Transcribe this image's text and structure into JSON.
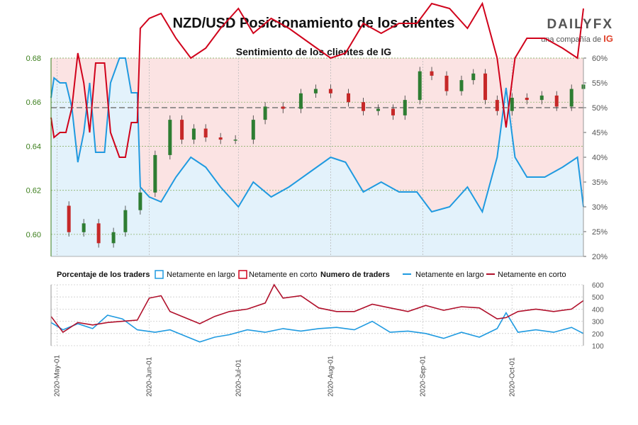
{
  "title": "NZD/USD Posicionamiento de los clientes",
  "subtitle": "Sentimiento de los clientes de IG",
  "logo": {
    "word": "DAILYFX",
    "tagline": "una compañía de",
    "brand": "IG"
  },
  "legend": {
    "percent_title": "Porcentaje de los traders",
    "count_title": "Numero de traders",
    "long_label": "Netamente en largo",
    "short_label": "Netamente en corto"
  },
  "colors": {
    "long": "#1f9ae0",
    "short": "#d0021b",
    "short_dark": "#b0102b",
    "up": "#2e7d32",
    "down": "#c62828",
    "bg_short": "#fbe3e3",
    "bg_long": "#e3f2fb"
  },
  "chart_data": [
    {
      "type": "candlestick",
      "title": "Sentimiento de los clientes de IG",
      "ylim": [
        0.59,
        0.68
      ],
      "yticks": [
        "0.60",
        "0.62",
        "0.64",
        "0.66",
        "0.68"
      ],
      "right_ylim": [
        20,
        60
      ],
      "right_yticks": [
        "20%",
        "25%",
        "30%",
        "35%",
        "40%",
        "45%",
        "50%",
        "55%",
        "60%"
      ],
      "x_range": [
        "2020-04-29",
        "2020-10-25"
      ],
      "x_ticks": [
        "2020-May-01",
        "2020-Jun-01",
        "2020-Jul-01",
        "2020-Aug-01",
        "2020-Sep-01",
        "2020-Oct-01"
      ],
      "reference_line": 50,
      "close": [
        {
          "d": "2020-04-29",
          "v": 0.613
        },
        {
          "d": "2020-05-05",
          "v": 0.601
        },
        {
          "d": "2020-05-10",
          "v": 0.605
        },
        {
          "d": "2020-05-15",
          "v": 0.596
        },
        {
          "d": "2020-05-20",
          "v": 0.601
        },
        {
          "d": "2020-05-24",
          "v": 0.611
        },
        {
          "d": "2020-05-29",
          "v": 0.619
        },
        {
          "d": "2020-06-03",
          "v": 0.636
        },
        {
          "d": "2020-06-08",
          "v": 0.652
        },
        {
          "d": "2020-06-12",
          "v": 0.643
        },
        {
          "d": "2020-06-16",
          "v": 0.648
        },
        {
          "d": "2020-06-20",
          "v": 0.644
        },
        {
          "d": "2020-06-25",
          "v": 0.643
        },
        {
          "d": "2020-06-30",
          "v": 0.643
        },
        {
          "d": "2020-07-06",
          "v": 0.652
        },
        {
          "d": "2020-07-10",
          "v": 0.658
        },
        {
          "d": "2020-07-16",
          "v": 0.657
        },
        {
          "d": "2020-07-22",
          "v": 0.664
        },
        {
          "d": "2020-07-27",
          "v": 0.666
        },
        {
          "d": "2020-08-01",
          "v": 0.664
        },
        {
          "d": "2020-08-07",
          "v": 0.66
        },
        {
          "d": "2020-08-12",
          "v": 0.656
        },
        {
          "d": "2020-08-17",
          "v": 0.657
        },
        {
          "d": "2020-08-22",
          "v": 0.654
        },
        {
          "d": "2020-08-26",
          "v": 0.661
        },
        {
          "d": "2020-08-31",
          "v": 0.674
        },
        {
          "d": "2020-09-04",
          "v": 0.672
        },
        {
          "d": "2020-09-09",
          "v": 0.665
        },
        {
          "d": "2020-09-14",
          "v": 0.67
        },
        {
          "d": "2020-09-18",
          "v": 0.673
        },
        {
          "d": "2020-09-22",
          "v": 0.661
        },
        {
          "d": "2020-09-26",
          "v": 0.656
        },
        {
          "d": "2020-10-01",
          "v": 0.662
        },
        {
          "d": "2020-10-06",
          "v": 0.661
        },
        {
          "d": "2020-10-11",
          "v": 0.663
        },
        {
          "d": "2020-10-16",
          "v": 0.658
        },
        {
          "d": "2020-10-21",
          "v": 0.666
        },
        {
          "d": "2020-10-25",
          "v": 0.668
        }
      ],
      "series": [
        {
          "name": "Netamente en largo",
          "values": [
            {
              "d": "2020-04-29",
              "v": 52
            },
            {
              "d": "2020-04-30",
              "v": 56
            },
            {
              "d": "2020-05-02",
              "v": 55
            },
            {
              "d": "2020-05-04",
              "v": 55
            },
            {
              "d": "2020-05-06",
              "v": 50
            },
            {
              "d": "2020-05-08",
              "v": 39
            },
            {
              "d": "2020-05-10",
              "v": 45
            },
            {
              "d": "2020-05-12",
              "v": 55
            },
            {
              "d": "2020-05-14",
              "v": 41
            },
            {
              "d": "2020-05-17",
              "v": 41
            },
            {
              "d": "2020-05-19",
              "v": 55
            },
            {
              "d": "2020-05-22",
              "v": 60
            },
            {
              "d": "2020-05-24",
              "v": 60
            },
            {
              "d": "2020-05-26",
              "v": 53
            },
            {
              "d": "2020-05-28",
              "v": 53
            },
            {
              "d": "2020-05-29",
              "v": 34
            },
            {
              "d": "2020-06-01",
              "v": 32
            },
            {
              "d": "2020-06-05",
              "v": 31
            },
            {
              "d": "2020-06-10",
              "v": 36
            },
            {
              "d": "2020-06-15",
              "v": 40
            },
            {
              "d": "2020-06-20",
              "v": 38
            },
            {
              "d": "2020-06-25",
              "v": 34
            },
            {
              "d": "2020-07-01",
              "v": 30
            },
            {
              "d": "2020-07-06",
              "v": 35
            },
            {
              "d": "2020-07-12",
              "v": 32
            },
            {
              "d": "2020-07-18",
              "v": 34
            },
            {
              "d": "2020-07-25",
              "v": 37
            },
            {
              "d": "2020-08-01",
              "v": 40
            },
            {
              "d": "2020-08-06",
              "v": 39
            },
            {
              "d": "2020-08-12",
              "v": 33
            },
            {
              "d": "2020-08-18",
              "v": 35
            },
            {
              "d": "2020-08-24",
              "v": 33
            },
            {
              "d": "2020-08-30",
              "v": 33
            },
            {
              "d": "2020-09-04",
              "v": 29
            },
            {
              "d": "2020-09-10",
              "v": 30
            },
            {
              "d": "2020-09-16",
              "v": 34
            },
            {
              "d": "2020-09-21",
              "v": 29
            },
            {
              "d": "2020-09-26",
              "v": 40
            },
            {
              "d": "2020-09-29",
              "v": 54
            },
            {
              "d": "2020-10-02",
              "v": 40
            },
            {
              "d": "2020-10-06",
              "v": 36
            },
            {
              "d": "2020-10-12",
              "v": 36
            },
            {
              "d": "2020-10-18",
              "v": 38
            },
            {
              "d": "2020-10-23",
              "v": 40
            },
            {
              "d": "2020-10-25",
              "v": 30
            }
          ]
        },
        {
          "name": "Netamente en corto",
          "values": [
            {
              "d": "2020-04-29",
              "v": 48
            },
            {
              "d": "2020-04-30",
              "v": 44
            },
            {
              "d": "2020-05-02",
              "v": 45
            },
            {
              "d": "2020-05-04",
              "v": 45
            },
            {
              "d": "2020-05-06",
              "v": 50
            },
            {
              "d": "2020-05-08",
              "v": 61
            },
            {
              "d": "2020-05-10",
              "v": 55
            },
            {
              "d": "2020-05-12",
              "v": 45
            },
            {
              "d": "2020-05-14",
              "v": 59
            },
            {
              "d": "2020-05-17",
              "v": 59
            },
            {
              "d": "2020-05-19",
              "v": 45
            },
            {
              "d": "2020-05-22",
              "v": 40
            },
            {
              "d": "2020-05-24",
              "v": 40
            },
            {
              "d": "2020-05-26",
              "v": 47
            },
            {
              "d": "2020-05-28",
              "v": 47
            },
            {
              "d": "2020-05-29",
              "v": 66
            },
            {
              "d": "2020-06-01",
              "v": 68
            },
            {
              "d": "2020-06-05",
              "v": 69
            },
            {
              "d": "2020-06-10",
              "v": 64
            },
            {
              "d": "2020-06-15",
              "v": 60
            },
            {
              "d": "2020-06-20",
              "v": 62
            },
            {
              "d": "2020-06-25",
              "v": 66
            },
            {
              "d": "2020-07-01",
              "v": 70
            },
            {
              "d": "2020-07-06",
              "v": 65
            },
            {
              "d": "2020-07-12",
              "v": 68
            },
            {
              "d": "2020-07-18",
              "v": 66
            },
            {
              "d": "2020-07-25",
              "v": 63
            },
            {
              "d": "2020-08-01",
              "v": 60
            },
            {
              "d": "2020-08-06",
              "v": 61
            },
            {
              "d": "2020-08-12",
              "v": 67
            },
            {
              "d": "2020-08-18",
              "v": 65
            },
            {
              "d": "2020-08-24",
              "v": 67
            },
            {
              "d": "2020-08-30",
              "v": 67
            },
            {
              "d": "2020-09-04",
              "v": 71
            },
            {
              "d": "2020-09-10",
              "v": 70
            },
            {
              "d": "2020-09-16",
              "v": 66
            },
            {
              "d": "2020-09-21",
              "v": 71
            },
            {
              "d": "2020-09-26",
              "v": 60
            },
            {
              "d": "2020-09-29",
              "v": 46
            },
            {
              "d": "2020-10-02",
              "v": 60
            },
            {
              "d": "2020-10-06",
              "v": 64
            },
            {
              "d": "2020-10-12",
              "v": 64
            },
            {
              "d": "2020-10-18",
              "v": 62
            },
            {
              "d": "2020-10-23",
              "v": 60
            },
            {
              "d": "2020-10-25",
              "v": 70
            }
          ]
        }
      ]
    },
    {
      "type": "line",
      "title": "Numero de traders",
      "ylim": [
        100,
        600
      ],
      "yticks": [
        "100",
        "200",
        "300",
        "400",
        "500",
        "600"
      ],
      "series": [
        {
          "name": "Netamente en largo",
          "values": [
            {
              "d": "2020-04-29",
              "v": 290
            },
            {
              "d": "2020-05-03",
              "v": 230
            },
            {
              "d": "2020-05-08",
              "v": 280
            },
            {
              "d": "2020-05-13",
              "v": 240
            },
            {
              "d": "2020-05-18",
              "v": 350
            },
            {
              "d": "2020-05-23",
              "v": 320
            },
            {
              "d": "2020-05-28",
              "v": 230
            },
            {
              "d": "2020-06-03",
              "v": 210
            },
            {
              "d": "2020-06-08",
              "v": 230
            },
            {
              "d": "2020-06-13",
              "v": 180
            },
            {
              "d": "2020-06-18",
              "v": 130
            },
            {
              "d": "2020-06-23",
              "v": 170
            },
            {
              "d": "2020-06-28",
              "v": 190
            },
            {
              "d": "2020-07-04",
              "v": 230
            },
            {
              "d": "2020-07-10",
              "v": 210
            },
            {
              "d": "2020-07-16",
              "v": 240
            },
            {
              "d": "2020-07-22",
              "v": 220
            },
            {
              "d": "2020-07-28",
              "v": 240
            },
            {
              "d": "2020-08-03",
              "v": 250
            },
            {
              "d": "2020-08-09",
              "v": 230
            },
            {
              "d": "2020-08-15",
              "v": 300
            },
            {
              "d": "2020-08-21",
              "v": 210
            },
            {
              "d": "2020-08-27",
              "v": 220
            },
            {
              "d": "2020-09-02",
              "v": 200
            },
            {
              "d": "2020-09-08",
              "v": 160
            },
            {
              "d": "2020-09-14",
              "v": 210
            },
            {
              "d": "2020-09-20",
              "v": 170
            },
            {
              "d": "2020-09-26",
              "v": 240
            },
            {
              "d": "2020-09-29",
              "v": 370
            },
            {
              "d": "2020-10-03",
              "v": 210
            },
            {
              "d": "2020-10-09",
              "v": 230
            },
            {
              "d": "2020-10-15",
              "v": 210
            },
            {
              "d": "2020-10-21",
              "v": 250
            },
            {
              "d": "2020-10-25",
              "v": 200
            }
          ]
        },
        {
          "name": "Netamente en corto",
          "values": [
            {
              "d": "2020-04-29",
              "v": 340
            },
            {
              "d": "2020-05-03",
              "v": 210
            },
            {
              "d": "2020-05-08",
              "v": 290
            },
            {
              "d": "2020-05-13",
              "v": 270
            },
            {
              "d": "2020-05-18",
              "v": 290
            },
            {
              "d": "2020-05-23",
              "v": 300
            },
            {
              "d": "2020-05-28",
              "v": 310
            },
            {
              "d": "2020-06-01",
              "v": 490
            },
            {
              "d": "2020-06-05",
              "v": 510
            },
            {
              "d": "2020-06-08",
              "v": 380
            },
            {
              "d": "2020-06-13",
              "v": 330
            },
            {
              "d": "2020-06-18",
              "v": 280
            },
            {
              "d": "2020-06-23",
              "v": 340
            },
            {
              "d": "2020-06-28",
              "v": 380
            },
            {
              "d": "2020-07-04",
              "v": 400
            },
            {
              "d": "2020-07-10",
              "v": 450
            },
            {
              "d": "2020-07-13",
              "v": 600
            },
            {
              "d": "2020-07-16",
              "v": 490
            },
            {
              "d": "2020-07-22",
              "v": 510
            },
            {
              "d": "2020-07-28",
              "v": 410
            },
            {
              "d": "2020-08-03",
              "v": 380
            },
            {
              "d": "2020-08-09",
              "v": 380
            },
            {
              "d": "2020-08-15",
              "v": 440
            },
            {
              "d": "2020-08-21",
              "v": 410
            },
            {
              "d": "2020-08-27",
              "v": 380
            },
            {
              "d": "2020-09-02",
              "v": 430
            },
            {
              "d": "2020-09-08",
              "v": 390
            },
            {
              "d": "2020-09-14",
              "v": 420
            },
            {
              "d": "2020-09-20",
              "v": 410
            },
            {
              "d": "2020-09-26",
              "v": 320
            },
            {
              "d": "2020-09-29",
              "v": 330
            },
            {
              "d": "2020-10-03",
              "v": 380
            },
            {
              "d": "2020-10-09",
              "v": 400
            },
            {
              "d": "2020-10-15",
              "v": 380
            },
            {
              "d": "2020-10-21",
              "v": 400
            },
            {
              "d": "2020-10-25",
              "v": 470
            }
          ]
        }
      ]
    }
  ]
}
